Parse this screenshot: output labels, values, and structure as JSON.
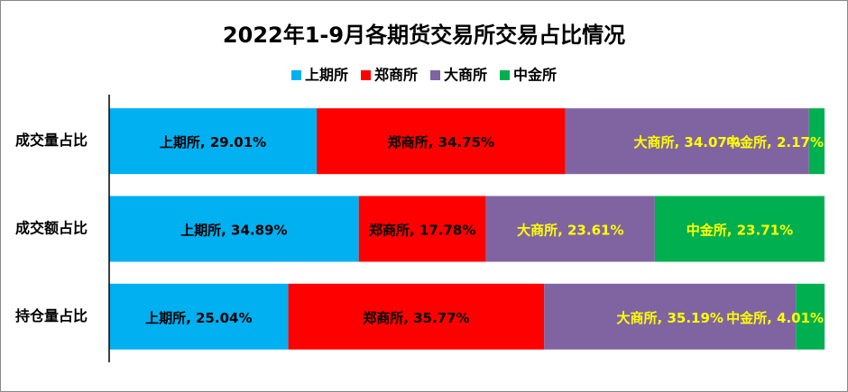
{
  "chart_data": {
    "type": "stacked-bar-horizontal",
    "title": "2022年1-9月各期货交易所交易占比情况",
    "categories": [
      "成交量占比",
      "成交额占比",
      "持仓量占比"
    ],
    "xlim": [
      0,
      100
    ],
    "legend": "top",
    "series": [
      {
        "name": "上期所",
        "color": "#00b0f0",
        "label_color": "#000000",
        "values": [
          29.01,
          34.89,
          25.04
        ],
        "value_labels": [
          "上期所, 29.01%",
          "上期所, 34.89%",
          "上期所, 25.04%"
        ]
      },
      {
        "name": "郑商所",
        "color": "#ff0000",
        "label_color": "#000000",
        "values": [
          34.75,
          17.78,
          35.77
        ],
        "value_labels": [
          "郑商所, 34.75%",
          "郑商所, 17.78%",
          "郑商所, 35.77%"
        ]
      },
      {
        "name": "大商所",
        "color": "#8064a2",
        "label_color": "#ffff00",
        "values": [
          34.07,
          23.61,
          35.19
        ],
        "value_labels": [
          "大商所, 34.07%",
          "大商所, 23.61%",
          "大商所, 35.19%"
        ]
      },
      {
        "name": "中金所",
        "color": "#00b050",
        "label_color": "#ffff00",
        "values": [
          2.17,
          23.71,
          4.01
        ],
        "value_labels": [
          "中金所, 2.17%",
          "中金所, 23.71%",
          "中金所, 4.01%"
        ]
      }
    ]
  }
}
